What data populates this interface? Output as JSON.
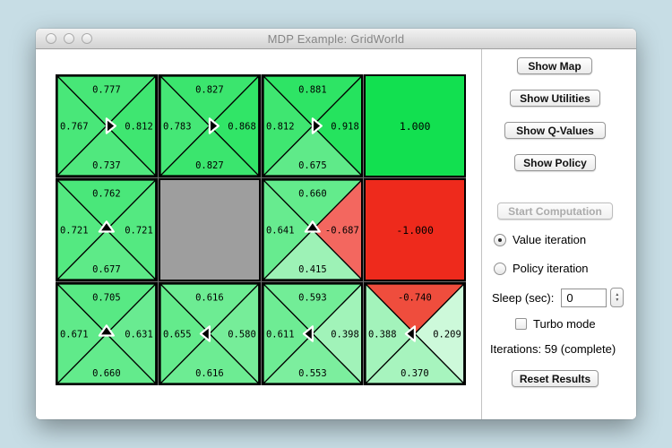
{
  "window": {
    "title": "MDP Example: GridWorld"
  },
  "grid": {
    "rows": 3,
    "cols": 4,
    "wall_color": "#9e9e9e",
    "cells": [
      [
        {
          "type": "q",
          "arrow": "right",
          "top": {
            "v": "0.777",
            "color": "#47e777"
          },
          "left": {
            "v": "0.767",
            "color": "#49e779"
          },
          "right": {
            "v": "0.812",
            "color": "#3fe671"
          },
          "bottom": {
            "v": "0.737",
            "color": "#50e87e"
          }
        },
        {
          "type": "q",
          "arrow": "right",
          "top": {
            "v": "0.827",
            "color": "#3be56e"
          },
          "left": {
            "v": "0.783",
            "color": "#45e776"
          },
          "right": {
            "v": "0.868",
            "color": "#31e567"
          },
          "bottom": {
            "v": "0.827",
            "color": "#3be56e"
          }
        },
        {
          "type": "q",
          "arrow": "right",
          "top": {
            "v": "0.881",
            "color": "#2ee465"
          },
          "left": {
            "v": "0.812",
            "color": "#3fe671"
          },
          "right": {
            "v": "0.918",
            "color": "#25e35e"
          },
          "bottom": {
            "v": "0.675",
            "color": "#5fea89"
          }
        },
        {
          "type": "terminal",
          "value": "1.000",
          "color": "#12e050"
        }
      ],
      [
        {
          "type": "q",
          "arrow": "up",
          "top": {
            "v": "0.762",
            "color": "#4ae77a"
          },
          "left": {
            "v": "0.721",
            "color": "#54e981"
          },
          "right": {
            "v": "0.721",
            "color": "#54e981"
          },
          "bottom": {
            "v": "0.677",
            "color": "#5eea88"
          }
        },
        {
          "type": "wall",
          "color": "#9e9e9e"
        },
        {
          "type": "q",
          "arrow": "up",
          "top": {
            "v": "0.660",
            "color": "#63eb8c"
          },
          "left": {
            "v": "0.641",
            "color": "#67eb8f"
          },
          "right": {
            "v": "-0.687",
            "color": "#f3675f"
          },
          "bottom": {
            "v": "0.415",
            "color": "#9df2b6"
          }
        },
        {
          "type": "terminal",
          "value": "-1.000",
          "color": "#ee2a1c"
        }
      ],
      [
        {
          "type": "q",
          "arrow": "up",
          "top": {
            "v": "0.705",
            "color": "#58e984"
          },
          "left": {
            "v": "0.671",
            "color": "#60ea8a"
          },
          "right": {
            "v": "0.631",
            "color": "#69eb91"
          },
          "bottom": {
            "v": "0.660",
            "color": "#63eb8c"
          }
        },
        {
          "type": "q",
          "arrow": "left",
          "top": {
            "v": "0.616",
            "color": "#6dec93"
          },
          "left": {
            "v": "0.655",
            "color": "#64eb8c"
          },
          "right": {
            "v": "0.580",
            "color": "#76ed99"
          },
          "bottom": {
            "v": "0.616",
            "color": "#6dec93"
          }
        },
        {
          "type": "q",
          "arrow": "left",
          "top": {
            "v": "0.593",
            "color": "#72ed97"
          },
          "left": {
            "v": "0.611",
            "color": "#6eec94"
          },
          "right": {
            "v": "0.398",
            "color": "#a1f3b9"
          },
          "bottom": {
            "v": "0.553",
            "color": "#7cee9e"
          }
        },
        {
          "type": "q",
          "arrow": "left",
          "top": {
            "v": "-0.740",
            "color": "#ef4d3d"
          },
          "left": {
            "v": "0.388",
            "color": "#a3f3bb"
          },
          "right": {
            "v": "0.209",
            "color": "#cdf9da"
          },
          "bottom": {
            "v": "0.370",
            "color": "#a7f4be"
          }
        }
      ]
    ]
  },
  "sidebar": {
    "show_map": "Show Map",
    "show_utilities": "Show Utilities",
    "show_q_values": "Show Q-Values",
    "show_policy": "Show Policy",
    "start_computation": "Start Computation",
    "value_iteration": "Value iteration",
    "policy_iteration": "Policy iteration",
    "selected_mode": "Value iteration",
    "sleep_label": "Sleep (sec):",
    "sleep_value": "0",
    "turbo_label": "Turbo mode",
    "turbo_checked": false,
    "iterations_text": "Iterations: 59 (complete)",
    "reset_results": "Reset Results"
  }
}
